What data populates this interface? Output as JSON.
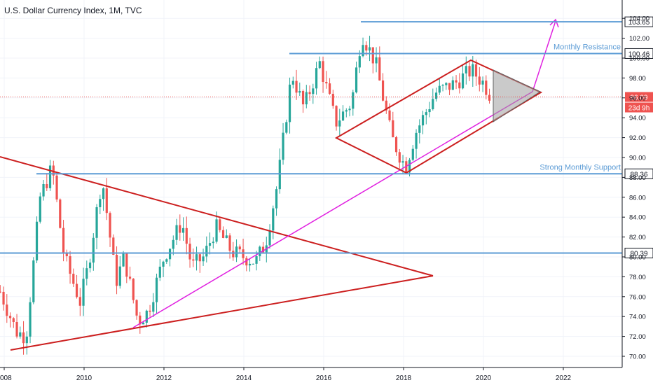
{
  "header": {
    "title": "U.S. Dollar Currency Index, 1M, TVC"
  },
  "chart_data": {
    "type": "candlestick",
    "title": "U.S. Dollar Currency Index, 1M, TVC",
    "x_ticks": [
      "008",
      "2010",
      "2012",
      "2014",
      "2016",
      "2018",
      "2020",
      "2022"
    ],
    "y_ticks": [
      "70.00",
      "72.00",
      "74.00",
      "76.00",
      "78.00",
      "80.00",
      "82.00",
      "84.00",
      "86.00",
      "88.00",
      "90.00",
      "92.00",
      "94.00",
      "96.00",
      "98.00",
      "100.00",
      "102.00",
      "104.00"
    ],
    "ylim": [
      69.0,
      105.5
    ],
    "horizontal_levels": [
      {
        "label": "Monthly Resistance",
        "value": "100.46",
        "y": 100.46
      },
      {
        "label": "",
        "value": "103.65",
        "y": 103.65
      },
      {
        "label": "Strong Monthly Support",
        "value": "88.36",
        "y": 88.36
      },
      {
        "label": "",
        "value": "80.39",
        "y": 80.39
      }
    ],
    "current_price": {
      "value": "96.09",
      "y": 96.09,
      "countdown": "23d 9h"
    },
    "colors": {
      "up": "#26a69a",
      "down": "#ef5350",
      "levels": "#5b9bd5",
      "trend": "#cc1f1f",
      "magenta": "#e020e0",
      "price": "#ef5350"
    }
  }
}
